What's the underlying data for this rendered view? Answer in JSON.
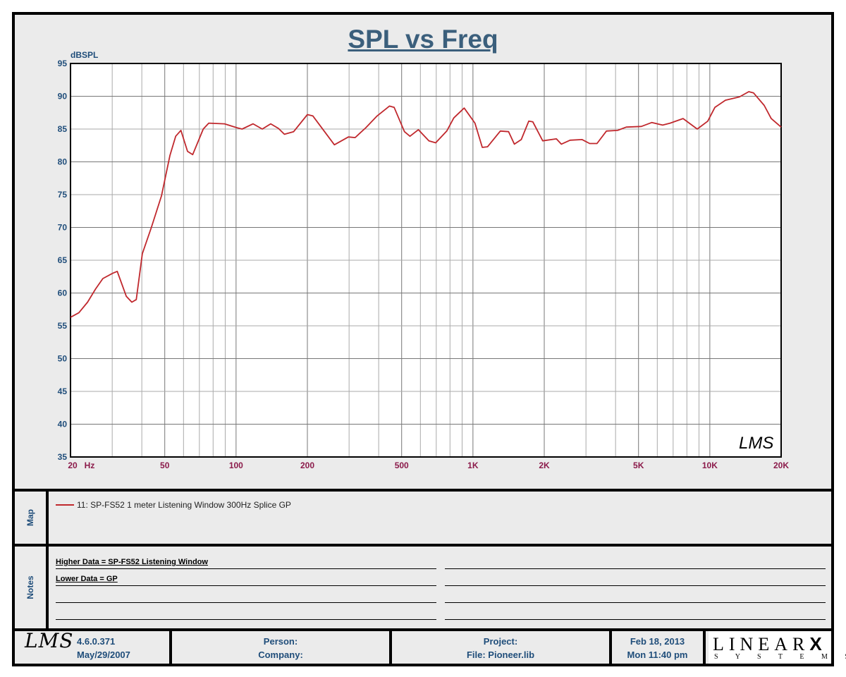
{
  "chart_data": {
    "type": "line",
    "title": "SPL vs Freq",
    "ylabel": "dBSPL",
    "xlabel": "Hz",
    "xscale": "log",
    "xlim": [
      20,
      20000
    ],
    "ylim": [
      35,
      95
    ],
    "grid": true,
    "y_ticks": [
      95,
      90,
      85,
      80,
      75,
      70,
      65,
      60,
      55,
      50,
      45,
      40,
      35
    ],
    "x_ticks": [
      {
        "v": 20,
        "label": "20"
      },
      {
        "v": 50,
        "label": "50"
      },
      {
        "v": 100,
        "label": "100"
      },
      {
        "v": 200,
        "label": "200"
      },
      {
        "v": 500,
        "label": "500"
      },
      {
        "v": 1000,
        "label": "1K"
      },
      {
        "v": 2000,
        "label": "2K"
      },
      {
        "v": 5000,
        "label": "5K"
      },
      {
        "v": 10000,
        "label": "10K"
      },
      {
        "v": 20000,
        "label": "20K"
      }
    ],
    "x_unit_label": "Hz",
    "series": [
      {
        "name": "11: SP-FS52 1 meter  Listening Window 300Hz Splice GP",
        "color": "#c0282d",
        "x": [
          20,
          21.7,
          23.6,
          25.5,
          27.4,
          30.1,
          31.5,
          34.4,
          36.3,
          37.9,
          40.2,
          43.9,
          48.4,
          52.6,
          55.6,
          58.5,
          62.4,
          65.6,
          72.7,
          76.7,
          89.4,
          100.8,
          106,
          118,
          129,
          140,
          151,
          160,
          175,
          200,
          211,
          260,
          298,
          318,
          353,
          394,
          444,
          465,
          514,
          542,
          588,
          652,
          696,
          775,
          830,
          918,
          1020,
          1095,
          1153,
          1305,
          1414,
          1496,
          1600,
          1720,
          1790,
          1970,
          2250,
          2360,
          2570,
          2890,
          3110,
          3340,
          3660,
          4080,
          4440,
          5140,
          5690,
          6320,
          6800,
          7710,
          8850,
          9800,
          10500,
          11640,
          13340,
          14600,
          15300,
          16970,
          18160,
          20000
        ],
        "y": [
          56.3,
          57.0,
          58.6,
          60.6,
          62.2,
          63.0,
          63.3,
          59.5,
          58.6,
          59.0,
          66,
          70,
          74.8,
          81,
          83.9,
          84.8,
          81.6,
          81.1,
          85,
          85.9,
          85.8,
          85.2,
          85,
          85.8,
          85,
          85.8,
          85.1,
          84.2,
          84.6,
          87.2,
          87,
          82.6,
          83.8,
          83.7,
          85.2,
          87,
          88.5,
          88.3,
          84.6,
          83.9,
          84.9,
          83.2,
          82.9,
          84.7,
          86.7,
          88.2,
          85.9,
          82.2,
          82.3,
          84.7,
          84.6,
          82.7,
          83.4,
          86.2,
          86.1,
          83.2,
          83.5,
          82.7,
          83.3,
          83.4,
          82.8,
          82.8,
          84.7,
          84.8,
          85.3,
          85.4,
          86,
          85.6,
          85.9,
          86.6,
          85,
          86.2,
          88.3,
          89.4,
          89.9,
          90.7,
          90.5,
          88.6,
          86.6,
          85.3
        ]
      }
    ]
  },
  "watermark": "LMS",
  "map": {
    "label": "Map",
    "legend": "11: SP-FS52 1 meter  Listening Window 300Hz Splice GP"
  },
  "notes": {
    "label": "Notes",
    "lines": [
      "Higher Data = SP-FS52 Listening Window",
      "Lower  Data = GP"
    ]
  },
  "footer": {
    "logo": "LMS",
    "version": "4.6.0.371",
    "version_date": "May/29/2007",
    "person": "Person:",
    "company": "Company:",
    "project": "Project:",
    "file": "File: Pioneer.lib",
    "date": "Feb 18, 2013",
    "time": "Mon 11:40 pm",
    "brand_top": "LINEAR",
    "brand_x": "X",
    "brand_bottom": "S Y S T E M S"
  }
}
